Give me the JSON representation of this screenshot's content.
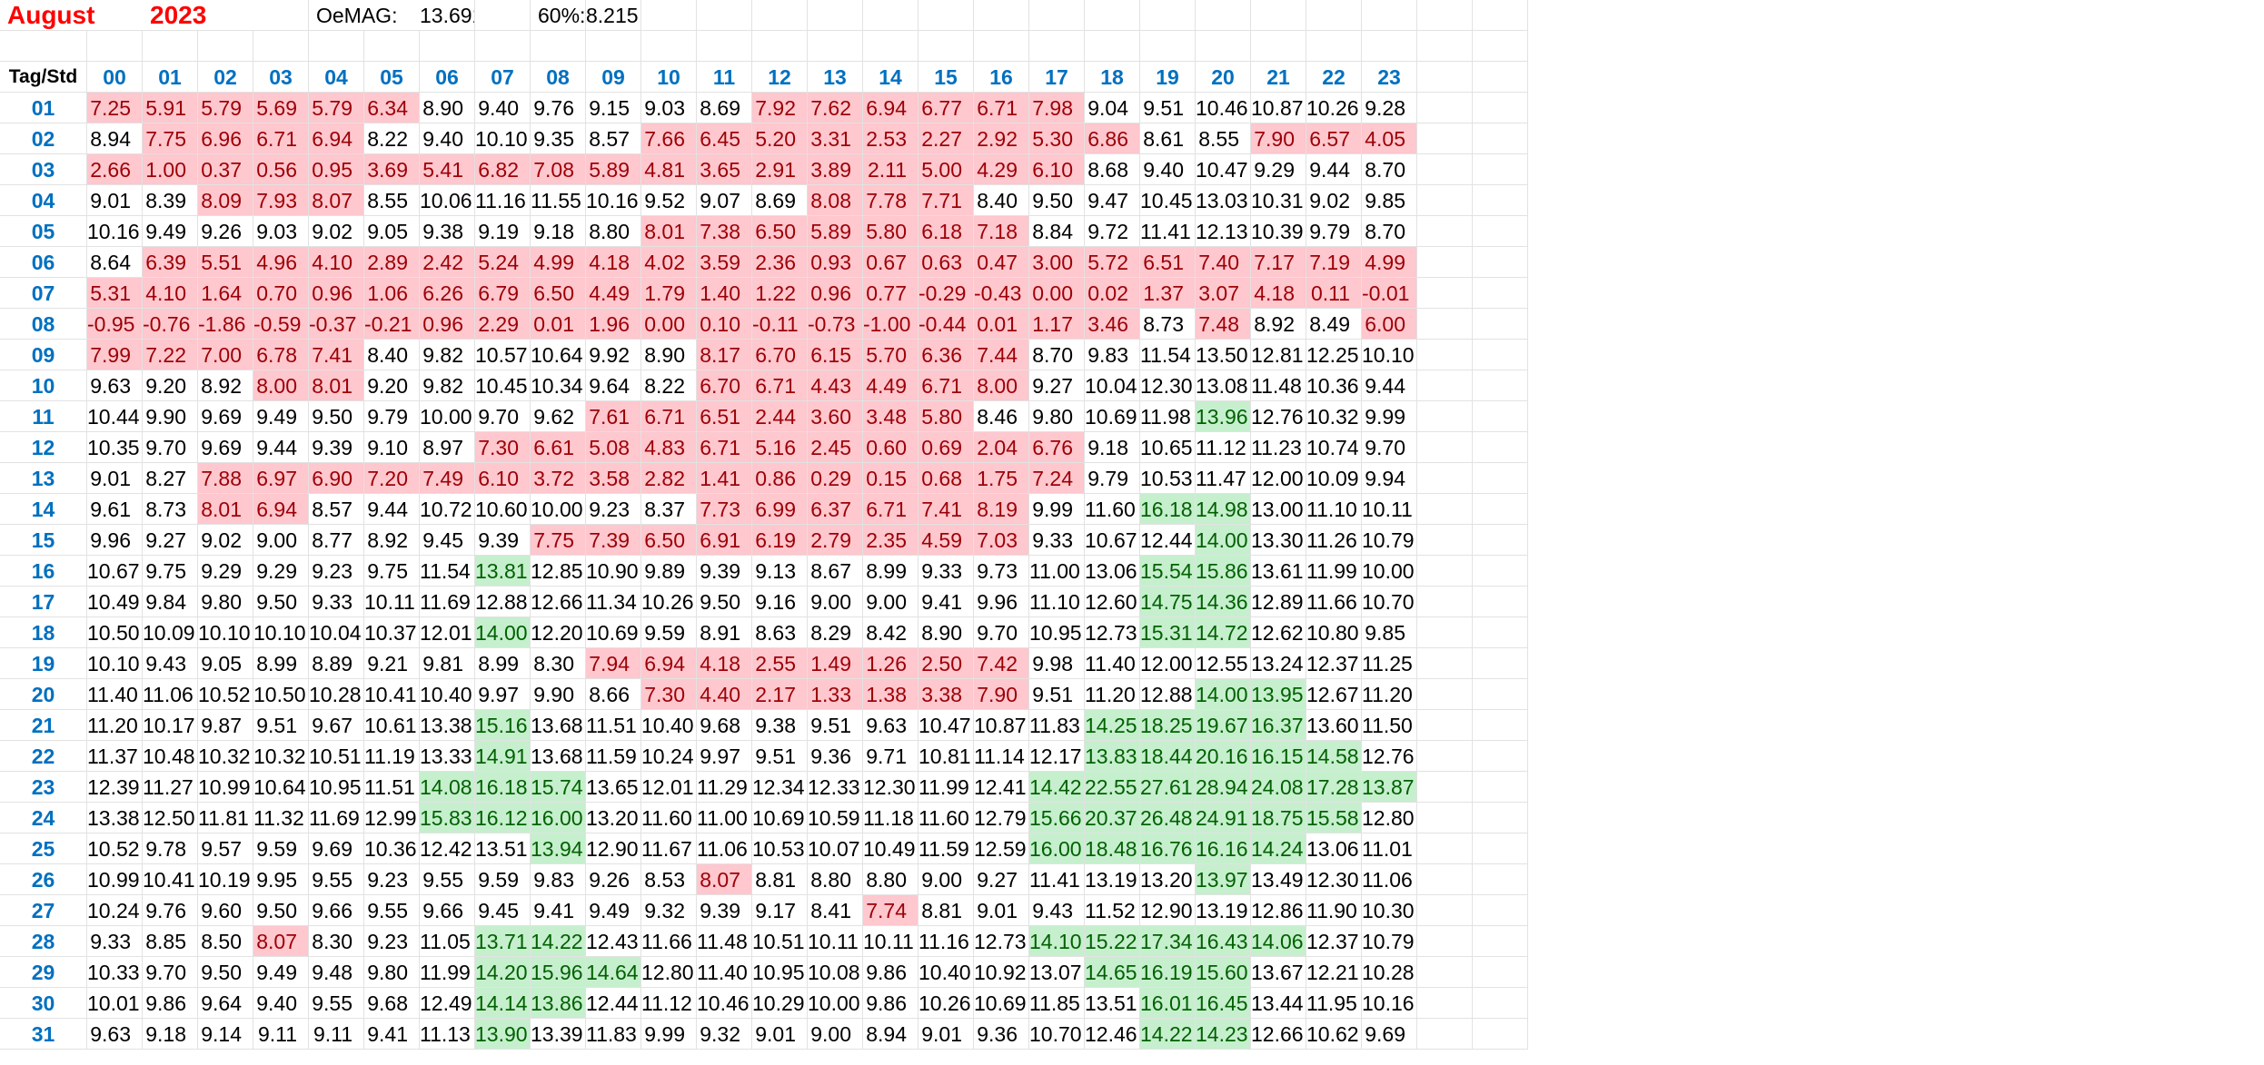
{
  "header": {
    "month": "August",
    "year": "2023",
    "oemag_label": "OeMAG:",
    "oemag_value": "13.691",
    "pct_label": "60%:",
    "pct_value": "8.215"
  },
  "corner_label": "Tag/Std",
  "hours": [
    "00",
    "01",
    "02",
    "03",
    "04",
    "05",
    "06",
    "07",
    "08",
    "09",
    "10",
    "11",
    "12",
    "13",
    "14",
    "15",
    "16",
    "17",
    "18",
    "19",
    "20",
    "21",
    "22",
    "23"
  ],
  "highlight_colors": {
    "below": "#ffc7ce",
    "below_text": "#9c0006",
    "above": "#c6efce",
    "above_text": "#006100"
  },
  "days": [
    {
      "day": "01",
      "values": [
        "7.25",
        "5.91",
        "5.79",
        "5.69",
        "5.79",
        "6.34",
        "8.90",
        "9.40",
        "9.76",
        "9.15",
        "9.03",
        "8.69",
        "7.92",
        "7.62",
        "6.94",
        "6.77",
        "6.71",
        "7.98",
        "9.04",
        "9.51",
        "10.46",
        "10.87",
        "10.26",
        "9.28"
      ]
    },
    {
      "day": "02",
      "values": [
        "8.94",
        "7.75",
        "6.96",
        "6.71",
        "6.94",
        "8.22",
        "9.40",
        "10.10",
        "9.35",
        "8.57",
        "7.66",
        "6.45",
        "5.20",
        "3.31",
        "2.53",
        "2.27",
        "2.92",
        "5.30",
        "6.86",
        "8.61",
        "8.55",
        "7.90",
        "6.57",
        "4.05"
      ]
    },
    {
      "day": "03",
      "values": [
        "2.66",
        "1.00",
        "0.37",
        "0.56",
        "0.95",
        "3.69",
        "5.41",
        "6.82",
        "7.08",
        "5.89",
        "4.81",
        "3.65",
        "2.91",
        "3.89",
        "2.11",
        "5.00",
        "4.29",
        "6.10",
        "8.68",
        "9.40",
        "10.47",
        "9.29",
        "9.44",
        "8.70"
      ]
    },
    {
      "day": "04",
      "values": [
        "9.01",
        "8.39",
        "8.09",
        "7.93",
        "8.07",
        "8.55",
        "10.06",
        "11.16",
        "11.55",
        "10.16",
        "9.52",
        "9.07",
        "8.69",
        "8.08",
        "7.78",
        "7.71",
        "8.40",
        "9.50",
        "9.47",
        "10.45",
        "13.03",
        "10.31",
        "9.02",
        "9.85"
      ]
    },
    {
      "day": "05",
      "values": [
        "10.16",
        "9.49",
        "9.26",
        "9.03",
        "9.02",
        "9.05",
        "9.38",
        "9.19",
        "9.18",
        "8.80",
        "8.01",
        "7.38",
        "6.50",
        "5.89",
        "5.80",
        "6.18",
        "7.18",
        "8.84",
        "9.72",
        "11.41",
        "12.13",
        "10.39",
        "9.79",
        "8.70"
      ]
    },
    {
      "day": "06",
      "values": [
        "8.64",
        "6.39",
        "5.51",
        "4.96",
        "4.10",
        "2.89",
        "2.42",
        "5.24",
        "4.99",
        "4.18",
        "4.02",
        "3.59",
        "2.36",
        "0.93",
        "0.67",
        "0.63",
        "0.47",
        "3.00",
        "5.72",
        "6.51",
        "7.40",
        "7.17",
        "7.19",
        "4.99"
      ]
    },
    {
      "day": "07",
      "values": [
        "5.31",
        "4.10",
        "1.64",
        "0.70",
        "0.96",
        "1.06",
        "6.26",
        "6.79",
        "6.50",
        "4.49",
        "1.79",
        "1.40",
        "1.22",
        "0.96",
        "0.77",
        "-0.29",
        "-0.43",
        "0.00",
        "0.02",
        "1.37",
        "3.07",
        "4.18",
        "0.11",
        "-0.01"
      ]
    },
    {
      "day": "08",
      "values": [
        "-0.95",
        "-0.76",
        "-1.86",
        "-0.59",
        "-0.37",
        "-0.21",
        "0.96",
        "2.29",
        "0.01",
        "1.96",
        "0.00",
        "0.10",
        "-0.11",
        "-0.73",
        "-1.00",
        "-0.44",
        "0.01",
        "1.17",
        "3.46",
        "8.73",
        "7.48",
        "8.92",
        "8.49",
        "6.00"
      ]
    },
    {
      "day": "09",
      "values": [
        "7.99",
        "7.22",
        "7.00",
        "6.78",
        "7.41",
        "8.40",
        "9.82",
        "10.57",
        "10.64",
        "9.92",
        "8.90",
        "8.17",
        "6.70",
        "6.15",
        "5.70",
        "6.36",
        "7.44",
        "8.70",
        "9.83",
        "11.54",
        "13.50",
        "12.81",
        "12.25",
        "10.10"
      ]
    },
    {
      "day": "10",
      "values": [
        "9.63",
        "9.20",
        "8.92",
        "8.00",
        "8.01",
        "9.20",
        "9.82",
        "10.45",
        "10.34",
        "9.64",
        "8.22",
        "6.70",
        "6.71",
        "4.43",
        "4.49",
        "6.71",
        "8.00",
        "9.27",
        "10.04",
        "12.30",
        "13.08",
        "11.48",
        "10.36",
        "9.44"
      ]
    },
    {
      "day": "11",
      "values": [
        "10.44",
        "9.90",
        "9.69",
        "9.49",
        "9.50",
        "9.79",
        "10.00",
        "9.70",
        "9.62",
        "7.61",
        "6.71",
        "6.51",
        "2.44",
        "3.60",
        "3.48",
        "5.80",
        "8.46",
        "9.80",
        "10.69",
        "11.98",
        "13.96",
        "12.76",
        "10.32",
        "9.99"
      ]
    },
    {
      "day": "12",
      "values": [
        "10.35",
        "9.70",
        "9.69",
        "9.44",
        "9.39",
        "9.10",
        "8.97",
        "7.30",
        "6.61",
        "5.08",
        "4.83",
        "6.71",
        "5.16",
        "2.45",
        "0.60",
        "0.69",
        "2.04",
        "6.76",
        "9.18",
        "10.65",
        "11.12",
        "11.23",
        "10.74",
        "9.70"
      ]
    },
    {
      "day": "13",
      "values": [
        "9.01",
        "8.27",
        "7.88",
        "6.97",
        "6.90",
        "7.20",
        "7.49",
        "6.10",
        "3.72",
        "3.58",
        "2.82",
        "1.41",
        "0.86",
        "0.29",
        "0.15",
        "0.68",
        "1.75",
        "7.24",
        "9.79",
        "10.53",
        "11.47",
        "12.00",
        "10.09",
        "9.94"
      ]
    },
    {
      "day": "14",
      "values": [
        "9.61",
        "8.73",
        "8.01",
        "6.94",
        "8.57",
        "9.44",
        "10.72",
        "10.60",
        "10.00",
        "9.23",
        "8.37",
        "7.73",
        "6.99",
        "6.37",
        "6.71",
        "7.41",
        "8.19",
        "9.99",
        "11.60",
        "16.18",
        "14.98",
        "13.00",
        "11.10",
        "10.11"
      ]
    },
    {
      "day": "15",
      "values": [
        "9.96",
        "9.27",
        "9.02",
        "9.00",
        "8.77",
        "8.92",
        "9.45",
        "9.39",
        "7.75",
        "7.39",
        "6.50",
        "6.91",
        "6.19",
        "2.79",
        "2.35",
        "4.59",
        "7.03",
        "9.33",
        "10.67",
        "12.44",
        "14.00",
        "13.30",
        "11.26",
        "10.79"
      ]
    },
    {
      "day": "16",
      "values": [
        "10.67",
        "9.75",
        "9.29",
        "9.29",
        "9.23",
        "9.75",
        "11.54",
        "13.81",
        "12.85",
        "10.90",
        "9.89",
        "9.39",
        "9.13",
        "8.67",
        "8.99",
        "9.33",
        "9.73",
        "11.00",
        "13.06",
        "15.54",
        "15.86",
        "13.61",
        "11.99",
        "10.00"
      ]
    },
    {
      "day": "17",
      "values": [
        "10.49",
        "9.84",
        "9.80",
        "9.50",
        "9.33",
        "10.11",
        "11.69",
        "12.88",
        "12.66",
        "11.34",
        "10.26",
        "9.50",
        "9.16",
        "9.00",
        "9.00",
        "9.41",
        "9.96",
        "11.10",
        "12.60",
        "14.75",
        "14.36",
        "12.89",
        "11.66",
        "10.70"
      ]
    },
    {
      "day": "18",
      "values": [
        "10.50",
        "10.09",
        "10.10",
        "10.10",
        "10.04",
        "10.37",
        "12.01",
        "14.00",
        "12.20",
        "10.69",
        "9.59",
        "8.91",
        "8.63",
        "8.29",
        "8.42",
        "8.90",
        "9.70",
        "10.95",
        "12.73",
        "15.31",
        "14.72",
        "12.62",
        "10.80",
        "9.85"
      ]
    },
    {
      "day": "19",
      "values": [
        "10.10",
        "9.43",
        "9.05",
        "8.99",
        "8.89",
        "9.21",
        "9.81",
        "8.99",
        "8.30",
        "7.94",
        "6.94",
        "4.18",
        "2.55",
        "1.49",
        "1.26",
        "2.50",
        "7.42",
        "9.98",
        "11.40",
        "12.00",
        "12.55",
        "13.24",
        "12.37",
        "11.25"
      ]
    },
    {
      "day": "20",
      "values": [
        "11.40",
        "11.06",
        "10.52",
        "10.50",
        "10.28",
        "10.41",
        "10.40",
        "9.97",
        "9.90",
        "8.66",
        "7.30",
        "4.40",
        "2.17",
        "1.33",
        "1.38",
        "3.38",
        "7.90",
        "9.51",
        "11.20",
        "12.88",
        "14.00",
        "13.95",
        "12.67",
        "11.20"
      ]
    },
    {
      "day": "21",
      "values": [
        "11.20",
        "10.17",
        "9.87",
        "9.51",
        "9.67",
        "10.61",
        "13.38",
        "15.16",
        "13.68",
        "11.51",
        "10.40",
        "9.68",
        "9.38",
        "9.51",
        "9.63",
        "10.47",
        "10.87",
        "11.83",
        "14.25",
        "18.25",
        "19.67",
        "16.37",
        "13.60",
        "11.50"
      ]
    },
    {
      "day": "22",
      "values": [
        "11.37",
        "10.48",
        "10.32",
        "10.32",
        "10.51",
        "11.19",
        "13.33",
        "14.91",
        "13.68",
        "11.59",
        "10.24",
        "9.97",
        "9.51",
        "9.36",
        "9.71",
        "10.81",
        "11.14",
        "12.17",
        "13.83",
        "18.44",
        "20.16",
        "16.15",
        "14.58",
        "12.76"
      ]
    },
    {
      "day": "23",
      "values": [
        "12.39",
        "11.27",
        "10.99",
        "10.64",
        "10.95",
        "11.51",
        "14.08",
        "16.18",
        "15.74",
        "13.65",
        "12.01",
        "11.29",
        "12.34",
        "12.33",
        "12.30",
        "11.99",
        "12.41",
        "14.42",
        "22.55",
        "27.61",
        "28.94",
        "24.08",
        "17.28",
        "13.87"
      ]
    },
    {
      "day": "24",
      "values": [
        "13.38",
        "12.50",
        "11.81",
        "11.32",
        "11.69",
        "12.99",
        "15.83",
        "16.12",
        "16.00",
        "13.20",
        "11.60",
        "11.00",
        "10.69",
        "10.59",
        "11.18",
        "11.60",
        "12.79",
        "15.66",
        "20.37",
        "26.48",
        "24.91",
        "18.75",
        "15.58",
        "12.80"
      ]
    },
    {
      "day": "25",
      "values": [
        "10.52",
        "9.78",
        "9.57",
        "9.59",
        "9.69",
        "10.36",
        "12.42",
        "13.51",
        "13.94",
        "12.90",
        "11.67",
        "11.06",
        "10.53",
        "10.07",
        "10.49",
        "11.59",
        "12.59",
        "16.00",
        "18.48",
        "16.76",
        "16.16",
        "14.24",
        "13.06",
        "11.01"
      ]
    },
    {
      "day": "26",
      "values": [
        "10.99",
        "10.41",
        "10.19",
        "9.95",
        "9.55",
        "9.23",
        "9.55",
        "9.59",
        "9.83",
        "9.26",
        "8.53",
        "8.07",
        "8.81",
        "8.80",
        "8.80",
        "9.00",
        "9.27",
        "11.41",
        "13.19",
        "13.20",
        "13.97",
        "13.49",
        "12.30",
        "11.06"
      ]
    },
    {
      "day": "27",
      "values": [
        "10.24",
        "9.76",
        "9.60",
        "9.50",
        "9.66",
        "9.55",
        "9.66",
        "9.45",
        "9.41",
        "9.49",
        "9.32",
        "9.39",
        "9.17",
        "8.41",
        "7.74",
        "8.81",
        "9.01",
        "9.43",
        "11.52",
        "12.90",
        "13.19",
        "12.86",
        "11.90",
        "10.30"
      ]
    },
    {
      "day": "28",
      "values": [
        "9.33",
        "8.85",
        "8.50",
        "8.07",
        "8.30",
        "9.23",
        "11.05",
        "13.71",
        "14.22",
        "12.43",
        "11.66",
        "11.48",
        "10.51",
        "10.11",
        "10.11",
        "11.16",
        "12.73",
        "14.10",
        "15.22",
        "17.34",
        "16.43",
        "14.06",
        "12.37",
        "10.79"
      ]
    },
    {
      "day": "29",
      "values": [
        "10.33",
        "9.70",
        "9.50",
        "9.49",
        "9.48",
        "9.80",
        "11.99",
        "14.20",
        "15.96",
        "14.64",
        "12.80",
        "11.40",
        "10.95",
        "10.08",
        "9.86",
        "10.40",
        "10.92",
        "13.07",
        "14.65",
        "16.19",
        "15.60",
        "13.67",
        "12.21",
        "10.28"
      ]
    },
    {
      "day": "30",
      "values": [
        "10.01",
        "9.86",
        "9.64",
        "9.40",
        "9.55",
        "9.68",
        "12.49",
        "14.14",
        "13.86",
        "12.44",
        "11.12",
        "10.46",
        "10.29",
        "10.00",
        "9.86",
        "10.26",
        "10.69",
        "11.85",
        "13.51",
        "16.01",
        "16.45",
        "13.44",
        "11.95",
        "10.16"
      ]
    },
    {
      "day": "31",
      "values": [
        "9.63",
        "9.18",
        "9.14",
        "9.11",
        "9.11",
        "9.41",
        "11.13",
        "13.90",
        "13.39",
        "11.83",
        "9.99",
        "9.32",
        "9.01",
        "9.00",
        "8.94",
        "9.01",
        "9.36",
        "10.70",
        "12.46",
        "14.22",
        "14.23",
        "12.66",
        "10.62",
        "9.69"
      ]
    }
  ]
}
